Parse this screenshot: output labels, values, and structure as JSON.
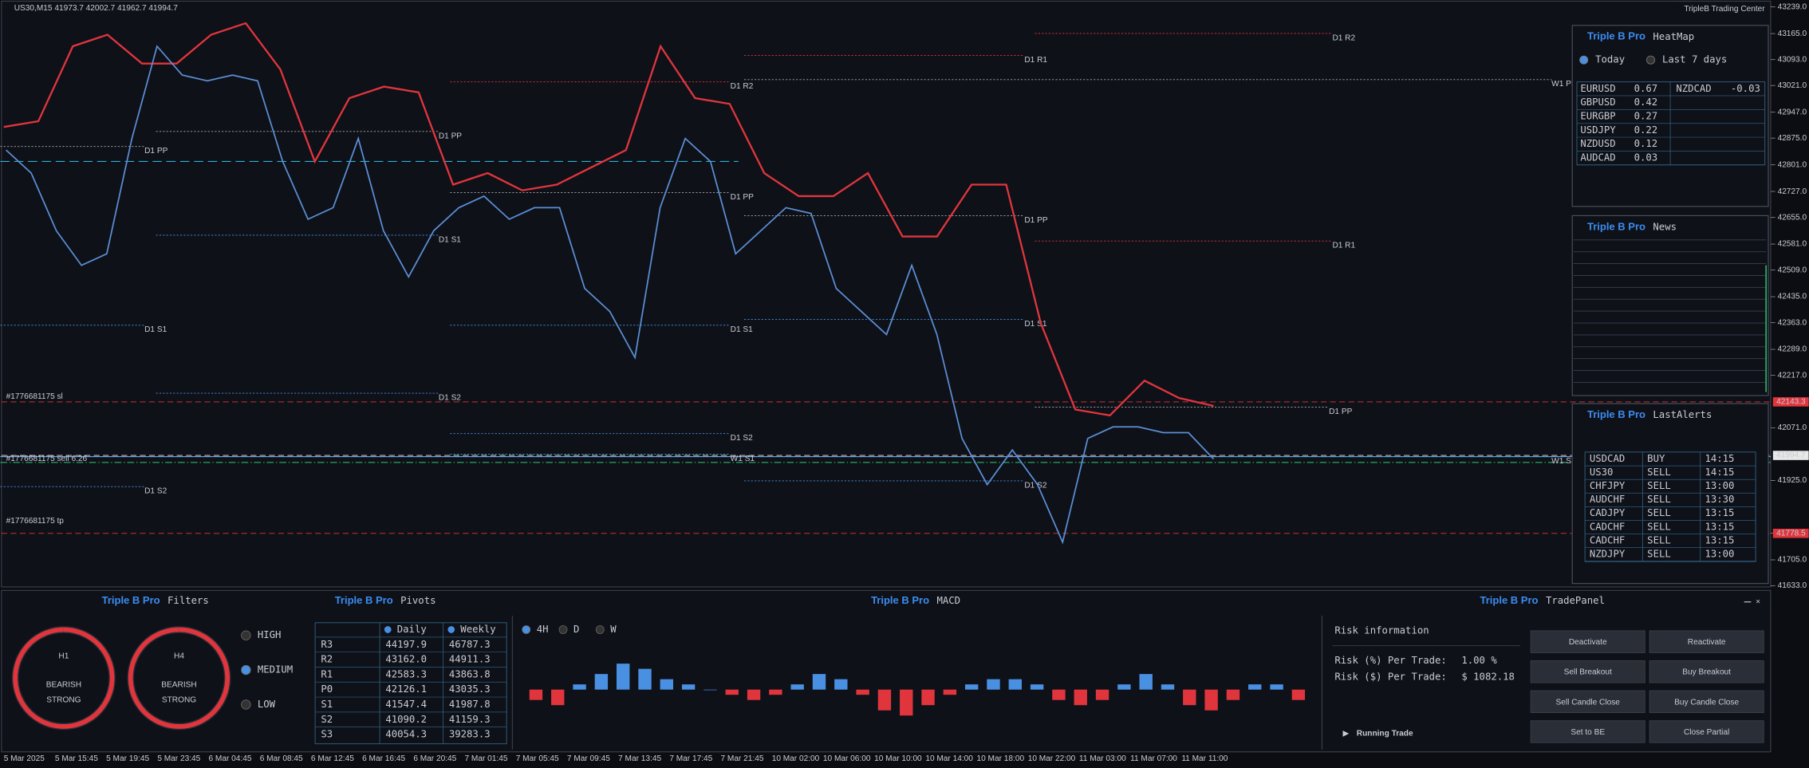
{
  "header": {
    "symbol": "US30,M15",
    "ohlc": "41973.7 42002.7 41962.7 41994.7",
    "center": "TripleB Trading Center"
  },
  "price_chart": {
    "type": "line",
    "values": [
      42842,
      42778,
      42618,
      42522,
      42554,
      42874,
      43130,
      43050,
      43034,
      43050,
      43034,
      42810,
      42650,
      42682,
      42874,
      42618,
      42490,
      42618,
      42682,
      42714,
      42650,
      42682,
      42682,
      42458,
      42394,
      42266,
      42682,
      42874,
      42810,
      42554,
      42618,
      42682,
      42666,
      42458,
      42394,
      42330,
      42522,
      42330,
      42042,
      41914,
      42010,
      41914,
      41754,
      42042,
      42074,
      42074,
      42058,
      42058,
      41985
    ],
    "band": [
      42906,
      42922,
      43130,
      43162,
      43082,
      43082,
      43162,
      43194,
      43066,
      42810,
      42986,
      43018,
      43002,
      42746,
      42778,
      42730,
      42746,
      42794,
      42842,
      43130,
      42986,
      42970,
      42778,
      42714,
      42714,
      42778,
      42602,
      42602,
      42746,
      42746,
      42362,
      42122,
      42106,
      42202,
      42154,
      42132
    ],
    "ylim": [
      41633,
      43239
    ],
    "yticks": [
      {
        "value": 43239,
        "label": "43239.0"
      },
      {
        "value": 43165,
        "label": "43165.0"
      },
      {
        "value": 43093,
        "label": "43093.0"
      },
      {
        "value": 43021,
        "label": "43021.0"
      },
      {
        "value": 42947,
        "label": "42947.0"
      },
      {
        "value": 42875,
        "label": "42875.0"
      },
      {
        "value": 42801,
        "label": "42801.0"
      },
      {
        "value": 42727,
        "label": "42727.0"
      },
      {
        "value": 42655,
        "label": "42655.0"
      },
      {
        "value": 42581,
        "label": "42581.0"
      },
      {
        "value": 42509,
        "label": "42509.0"
      },
      {
        "value": 42435,
        "label": "42435.0"
      },
      {
        "value": 42363,
        "label": "42363.0"
      },
      {
        "value": 42289,
        "label": "42289.0"
      },
      {
        "value": 42217,
        "label": "42217.0"
      },
      {
        "value": 42071,
        "label": "42071.0"
      },
      {
        "value": 41925,
        "label": "41925.0"
      },
      {
        "value": 41779,
        "label": "41779.0"
      },
      {
        "value": 41705,
        "label": "41705.0"
      },
      {
        "value": 41633,
        "label": "41633.0"
      }
    ],
    "price_tags": [
      {
        "value": 42143.3,
        "label": "42143.3",
        "color": "#e0353d"
      },
      {
        "value": 41994.7,
        "label": "41994.7",
        "color": "#e8e8e8"
      },
      {
        "value": 41778.5,
        "label": "41778.5",
        "color": "#e0353d"
      }
    ],
    "categories": [
      "5 Mar 2025",
      "5 Mar 15:45",
      "5 Mar 19:45",
      "5 Mar 23:45",
      "6 Mar 04:45",
      "6 Mar 08:45",
      "6 Mar 12:45",
      "6 Mar 16:45",
      "6 Mar 20:45",
      "7 Mar 01:45",
      "7 Mar 05:45",
      "7 Mar 09:45",
      "7 Mar 13:45",
      "7 Mar 17:45",
      "7 Mar 21:45",
      "10 Mar 02:00",
      "10 Mar 06:00",
      "10 Mar 10:00",
      "10 Mar 14:00",
      "10 Mar 18:00",
      "10 Mar 22:00",
      "11 Mar 03:00",
      "11 Mar 07:00",
      "11 Mar 11:00"
    ],
    "levels": [
      "D1 R2",
      "D1 R1",
      "W1 PP",
      "D1 PP",
      "D1 PP",
      "D1 PP",
      "D1 PP",
      "D1 R1",
      "D1 S1",
      "D1 S1",
      "D1 S1",
      "D1 S1",
      "D1 S2",
      "D1 S2",
      "D1 S2",
      "D1 S2",
      "W1 S1",
      "W1 S1",
      "D1 PP",
      "D1 R2"
    ],
    "orders": [
      "#1776681175 sl",
      "#1776681175 sell 6.26",
      "#1776681175 tp"
    ]
  },
  "heatmap": {
    "brand": "Triple B Pro",
    "title": "HeatMap",
    "tabs": [
      "Today",
      "Last 7 days"
    ],
    "positive": [
      [
        "EURUSD",
        "0.67"
      ],
      [
        "GBPUSD",
        "0.42"
      ],
      [
        "EURGBP",
        "0.27"
      ],
      [
        "USDJPY",
        "0.22"
      ],
      [
        "NZDUSD",
        "0.12"
      ],
      [
        "AUDCAD",
        "0.03"
      ]
    ],
    "negative": [
      [
        "NZDCAD",
        "-0.03"
      ]
    ]
  },
  "news": {
    "brand": "Triple B Pro",
    "title": "News"
  },
  "alerts": {
    "brand": "Triple B Pro",
    "title": "LastAlerts",
    "rows": [
      [
        "USDCAD",
        "BUY",
        "14:15"
      ],
      [
        "US30",
        "SELL",
        "14:15"
      ],
      [
        "CHFJPY",
        "SELL",
        "13:00"
      ],
      [
        "AUDCHF",
        "SELL",
        "13:30"
      ],
      [
        "CADJPY",
        "SELL",
        "13:15"
      ],
      [
        "CADCHF",
        "SELL",
        "13:15"
      ],
      [
        "CADCHF",
        "SELL",
        "13:15"
      ],
      [
        "NZDJPY",
        "SELL",
        "13:00"
      ]
    ]
  },
  "filters": {
    "brand": "Triple B Pro",
    "title": "Filters",
    "gauges": [
      [
        "H1",
        "BEARISH",
        "STRONG"
      ],
      [
        "H4",
        "BEARISH",
        "STRONG"
      ]
    ],
    "levels": [
      "HIGH",
      "MEDIUM",
      "LOW"
    ]
  },
  "pivots": {
    "brand": "Triple B Pro",
    "title": "Pivots",
    "columns": [
      "Daily",
      "Weekly"
    ],
    "rows": [
      [
        "R3",
        "44197.9",
        "46787.3"
      ],
      [
        "R2",
        "43162.0",
        "44911.3"
      ],
      [
        "R1",
        "42583.3",
        "43863.8"
      ],
      [
        "P0",
        "42126.1",
        "43035.3"
      ],
      [
        "S1",
        "41547.4",
        "41987.8"
      ],
      [
        "S2",
        "41090.2",
        "41159.3"
      ],
      [
        "S3",
        "40054.3",
        "39283.3"
      ]
    ]
  },
  "macd": {
    "type": "bar",
    "brand": "Triple B Pro",
    "title": "MACD",
    "timeframes": [
      "4H",
      "D",
      "W"
    ],
    "values": [
      -0.2,
      -0.3,
      0.1,
      0.3,
      0.5,
      0.4,
      0.2,
      0.1,
      0.0,
      -0.1,
      -0.2,
      -0.1,
      0.1,
      0.3,
      0.2,
      -0.1,
      -0.4,
      -0.5,
      -0.3,
      -0.1,
      0.1,
      0.2,
      0.2,
      0.1,
      -0.2,
      -0.3,
      -0.2,
      0.1,
      0.3,
      0.1,
      -0.3,
      -0.4,
      -0.2,
      0.1,
      0.1,
      -0.2
    ],
    "ylim": [
      -1,
      1
    ]
  },
  "trade_panel": {
    "brand": "Triple B Pro",
    "title": "TradePanel",
    "section": "Risk information",
    "risk_pct_label": "Risk (%) Per Trade:",
    "risk_pct": "1.00 %",
    "risk_usd_label": "Risk ($) Per Trade:",
    "risk_usd": "$ 1082.18",
    "running": "Running Trade",
    "buttons": [
      "Deactivate",
      "Reactivate",
      "Sell Breakout",
      "Buy Breakout",
      "Sell Candle Close",
      "Buy Candle Close",
      "Set to BE",
      "Close Partial"
    ]
  }
}
